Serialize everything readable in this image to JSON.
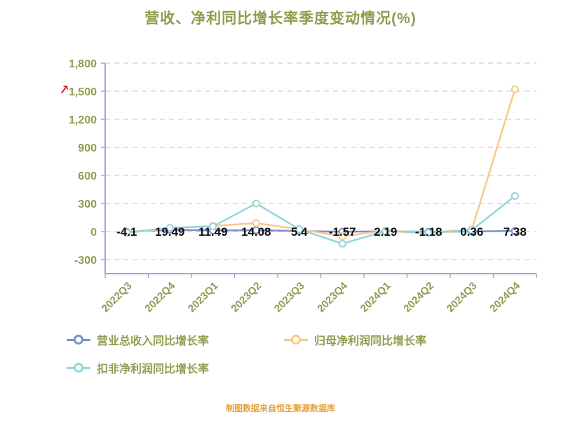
{
  "title": "营收、净利同比增长率季度变动情况(%)",
  "footer": "制图数据来自恒生聚源数据库",
  "annotation": {
    "red_arrow": "↗"
  },
  "colors": {
    "title_text": "#8e9d4e",
    "axis_text": "#8f9e52",
    "axis_line": "#a8a2d4",
    "gridline": "#cfcfcf",
    "data_label": "#111111",
    "footer_text": "#e7a23c",
    "annotation_red": "#d93025"
  },
  "chart_data": {
    "type": "line",
    "title": "营收、净利同比增长率季度变动情况(%)",
    "categories": [
      "2022Q3",
      "2022Q4",
      "2023Q1",
      "2023Q2",
      "2023Q3",
      "2023Q4",
      "2024Q1",
      "2024Q2",
      "2024Q3",
      "2024Q4"
    ],
    "series": [
      {
        "name": "营业总收入同比增长率",
        "color": "#7d8fd0",
        "values": [
          -4.1,
          19.49,
          11.49,
          14.08,
          5.4,
          -1.57,
          2.19,
          -1.18,
          0.36,
          7.38
        ]
      },
      {
        "name": "归母净利润同比增长率",
        "color": "#f7c98b",
        "values": [
          -15,
          35,
          60,
          90,
          25,
          -50,
          10,
          -10,
          20,
          1520
        ]
      },
      {
        "name": "扣非净利润同比增长率",
        "color": "#96d5da",
        "values": [
          -10,
          40,
          55,
          300,
          25,
          -130,
          5,
          -15,
          15,
          380
        ]
      }
    ],
    "data_labels": [
      "-4.1",
      "19.49",
      "11.49",
      "14.08",
      "5.4",
      "-1.57",
      "2.19",
      "-1.18",
      "0.36",
      "7.38"
    ],
    "data_labels_series": "营业总收入同比增长率",
    "ylim": [
      -300,
      1800
    ],
    "ytick_step": 300,
    "yticks": [
      "-300",
      "0",
      "300",
      "600",
      "900",
      "1,200",
      "1,500",
      "1,800"
    ],
    "grid": "dashed-horizontal",
    "legend_position": "bottom-left"
  }
}
